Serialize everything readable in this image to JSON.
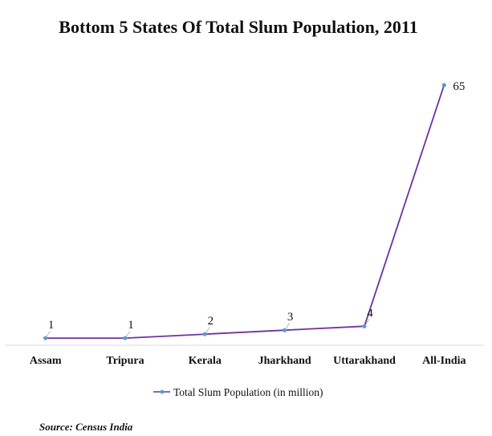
{
  "chart_data": {
    "type": "line",
    "title": "Bottom 5 States Of Total Slum Population, 2011",
    "categories": [
      "Assam",
      "Tripura",
      "Kerala",
      "Jharkhand",
      "Uttarakhand",
      "All-India"
    ],
    "series": [
      {
        "name": "Total Slum Population (in million)",
        "values": [
          1,
          1,
          2,
          3,
          4,
          65
        ],
        "labels": [
          "1",
          "1",
          "2",
          "3",
          "4",
          "65"
        ],
        "color": "#7030a0",
        "marker_color": "#5b9bd5"
      }
    ],
    "ylim": [
      0,
      65
    ],
    "grid": false,
    "legend_position": "bottom",
    "source": "Source: Census India"
  }
}
